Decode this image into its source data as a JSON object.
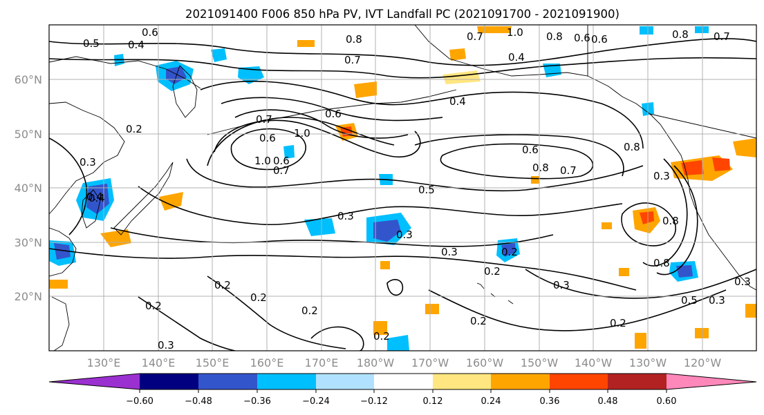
{
  "title": "2021091400 F006 850 hPa PV, IVT Landfall PC (2021091700 - 2021091900)",
  "lat_labels": [
    "60°N",
    "50°N",
    "40°N",
    "30°N",
    "20°N"
  ],
  "lon_labels": [
    "130°E",
    "140°E",
    "150°E",
    "160°E",
    "170°E",
    "180°W",
    "170°W",
    "160°W",
    "150°W",
    "140°W",
    "130°W",
    "120°W"
  ],
  "colorbar": {
    "colors": [
      "#9b30d0",
      "#000080",
      "#3355cc",
      "#00bfff",
      "#b0e2ff",
      "#ffffff",
      "#ffe680",
      "#ffa500",
      "#ff4500",
      "#b22222",
      "#ff88bb"
    ],
    "ticks": [
      "−0.60",
      "−0.48",
      "−0.36",
      "−0.24",
      "−0.12",
      "0.12",
      "0.24",
      "0.36",
      "0.48",
      "0.60"
    ]
  },
  "contour_labels": [
    "0.6",
    "0.5",
    "0.4",
    "0.8",
    "0.7",
    "0.6",
    "1.0",
    "0.8",
    "0.6",
    "0.8",
    "0.7",
    "0.4",
    "0.7",
    "0.4",
    "0.6",
    "0.7",
    "0.6",
    "1.0",
    "0.2",
    "0.3",
    "0.4",
    "1.0",
    "0.6",
    "0.7",
    "0.6",
    "0.8",
    "0.7",
    "0.5",
    "0.8",
    "0.3",
    "0.3",
    "0.3",
    "0.4",
    "0.8",
    "0.8",
    "0.2",
    "0.3",
    "0.2",
    "0.2",
    "0.2",
    "0.2",
    "0.5",
    "0.3",
    "0.2",
    "0.2",
    "0.3",
    "0.2",
    "0.3",
    "0.3",
    "0.2"
  ]
}
